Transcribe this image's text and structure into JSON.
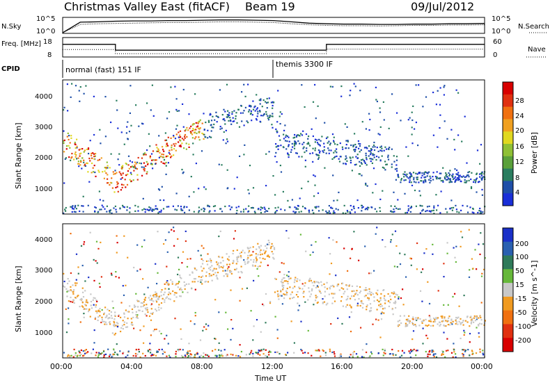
{
  "header": {
    "title": "Christmas Valley East (fitACF)",
    "beam": "Beam 19",
    "date": "09/Jul/2012"
  },
  "chart_data": [
    {
      "type": "line",
      "name": "noise",
      "left_label": "N.Sky",
      "right_label": "N.Search",
      "left_ticks": [
        "10^5",
        "10^0"
      ],
      "right_ticks": [
        "10^5",
        "10^0"
      ],
      "x": [
        0,
        1,
        2,
        3,
        4,
        5,
        6,
        7,
        8,
        9,
        10,
        11,
        12,
        13,
        14,
        15,
        16,
        17,
        18,
        19,
        20,
        21,
        22,
        23,
        24
      ],
      "series": [
        {
          "values": [
            0.2,
            3.5,
            3.6,
            3.8,
            3.9,
            3.9,
            4.0,
            4.0,
            4.1,
            4.2,
            4.2,
            4.1,
            4.0,
            3.6,
            3.2,
            3.0,
            2.9,
            2.9,
            2.8,
            2.8,
            2.9,
            2.9,
            3.0,
            3.0,
            3.1
          ]
        },
        {
          "values": [
            0.2,
            2.8,
            3.0,
            3.1,
            3.2,
            3.3,
            3.4,
            3.4,
            3.5,
            3.6,
            3.6,
            3.5,
            3.4,
            3.0,
            2.7,
            2.5,
            2.4,
            2.4,
            2.3,
            2.4,
            2.5,
            2.5,
            2.6,
            2.6,
            2.7
          ]
        }
      ]
    },
    {
      "type": "line",
      "name": "frequency",
      "left_label": "Freq. [MHz]",
      "right_label": "Nave",
      "left_ticks": [
        "18",
        "8"
      ],
      "right_ticks": [
        "60",
        "0"
      ],
      "series": [
        {
          "name": "frequency",
          "segments": [
            [
              0,
              3,
              14.5
            ],
            [
              3,
              15,
              11.5
            ],
            [
              15,
              24,
              14.5
            ]
          ]
        },
        {
          "name": "nave",
          "segments": [
            [
              0,
              3,
              23
            ],
            [
              3,
              15,
              10
            ],
            [
              15,
              24,
              24
            ]
          ]
        }
      ]
    },
    {
      "type": "table",
      "name": "cpid",
      "label": "CPID",
      "entries": [
        {
          "text": "normal (fast) 151 IF",
          "start": 0
        },
        {
          "text": "themis 3300 IF",
          "start": 12
        }
      ]
    },
    {
      "type": "heatmap",
      "name": "power",
      "ylabel": "Slant Range [km]",
      "y_ticks": [
        "1000",
        "2000",
        "3000",
        "4000"
      ],
      "colorbar_label": "Power [dB]",
      "colorbar_ticks": [
        "4",
        "8",
        "12",
        "16",
        "20",
        "24",
        "28"
      ],
      "colorbar_colors": [
        "#1a2fd8",
        "#1f4fa8",
        "#2a7d5f",
        "#5aa03a",
        "#8fc035",
        "#e0d820",
        "#f0a020",
        "#f07010",
        "#e03010",
        "#d80000"
      ]
    },
    {
      "type": "heatmap",
      "name": "velocity",
      "ylabel": "Slant Range [km]",
      "y_ticks": [
        "1000",
        "2000",
        "3000",
        "4000"
      ],
      "colorbar_label": "Velocity [m s^-1]",
      "colorbar_ticks": [
        "200",
        "100",
        "50",
        "15",
        "-15",
        "-50",
        "-100",
        "-200"
      ],
      "colorbar_colors": [
        "#1a30c8",
        "#2a60b0",
        "#2f7a5a",
        "#66b83a",
        "#c8c8c8",
        "#f09a20",
        "#f07010",
        "#e03010",
        "#d80000"
      ],
      "xlabel": "Time UT",
      "x_ticks": [
        "00:00",
        "04:00",
        "08:00",
        "12:00",
        "16:00",
        "20:00",
        "00:00"
      ]
    }
  ]
}
